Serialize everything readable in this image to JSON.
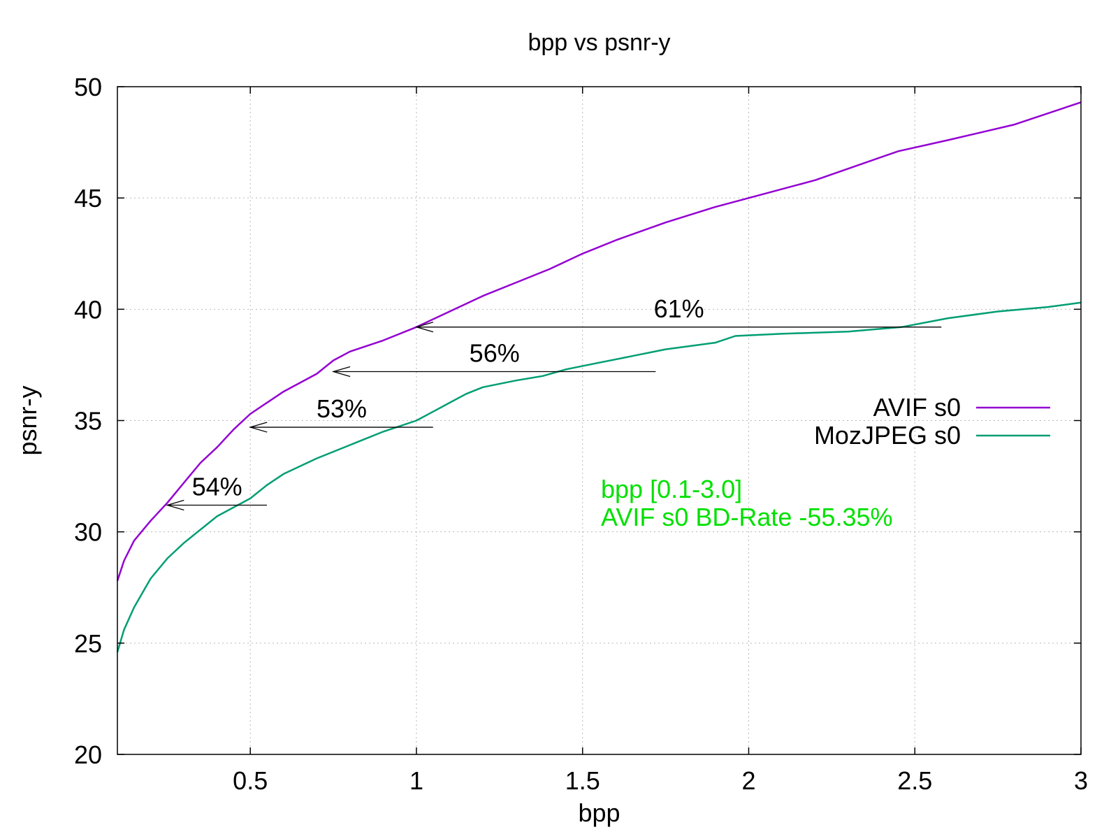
{
  "chart_data": {
    "type": "line",
    "title": "bpp vs psnr-y",
    "xlabel": "bpp",
    "ylabel": "psnr-y",
    "xlim": [
      0.1,
      3.0
    ],
    "ylim": [
      20,
      50
    ],
    "x_ticks": [
      "0.5",
      "1",
      "1.5",
      "2",
      "2.5",
      "3"
    ],
    "y_ticks": [
      "20",
      "25",
      "30",
      "35",
      "40",
      "45",
      "50"
    ],
    "grid": true,
    "legend_position": "right",
    "series": [
      {
        "name": "AVIF s0",
        "color": "#9400d3",
        "x": [
          0.1,
          0.12,
          0.15,
          0.2,
          0.25,
          0.3,
          0.35,
          0.4,
          0.45,
          0.5,
          0.6,
          0.7,
          0.75,
          0.8,
          0.9,
          1.0,
          1.1,
          1.2,
          1.3,
          1.4,
          1.5,
          1.6,
          1.75,
          1.9,
          2.0,
          2.2,
          2.45,
          2.6,
          2.8,
          3.0
        ],
        "y": [
          27.8,
          28.7,
          29.6,
          30.5,
          31.3,
          32.2,
          33.1,
          33.8,
          34.6,
          35.3,
          36.3,
          37.1,
          37.7,
          38.1,
          38.6,
          39.2,
          39.9,
          40.6,
          41.2,
          41.8,
          42.5,
          43.1,
          43.9,
          44.6,
          45.0,
          45.8,
          47.1,
          47.6,
          48.3,
          49.3
        ]
      },
      {
        "name": "MozJPEG s0",
        "color": "#009e73",
        "x": [
          0.1,
          0.12,
          0.15,
          0.2,
          0.25,
          0.3,
          0.35,
          0.4,
          0.45,
          0.5,
          0.55,
          0.6,
          0.7,
          0.8,
          0.9,
          1.0,
          1.05,
          1.1,
          1.15,
          1.2,
          1.3,
          1.38,
          1.45,
          1.55,
          1.65,
          1.75,
          1.9,
          1.96,
          2.1,
          2.3,
          2.46,
          2.6,
          2.75,
          2.9,
          3.0
        ],
        "y": [
          24.6,
          25.6,
          26.6,
          27.9,
          28.8,
          29.5,
          30.1,
          30.7,
          31.1,
          31.5,
          32.1,
          32.6,
          33.3,
          33.9,
          34.5,
          35.0,
          35.4,
          35.8,
          36.2,
          36.5,
          36.8,
          37.0,
          37.3,
          37.6,
          37.9,
          38.2,
          38.5,
          38.8,
          38.9,
          39.0,
          39.2,
          39.6,
          39.9,
          40.1,
          40.3
        ]
      }
    ],
    "arrows": [
      {
        "label": "61%",
        "y": 39.2,
        "x_from": 2.58,
        "x_to": 1.0
      },
      {
        "label": "56%",
        "y": 37.2,
        "x_from": 1.72,
        "x_to": 0.75
      },
      {
        "label": "53%",
        "y": 34.7,
        "x_from": 1.05,
        "x_to": 0.5
      },
      {
        "label": "54%",
        "y": 31.2,
        "x_from": 0.55,
        "x_to": 0.25
      }
    ],
    "annotation": {
      "color": "#00e000",
      "lines": [
        "bpp [0.1-3.0]",
        "AVIF s0 BD-Rate -55.35%"
      ]
    }
  }
}
